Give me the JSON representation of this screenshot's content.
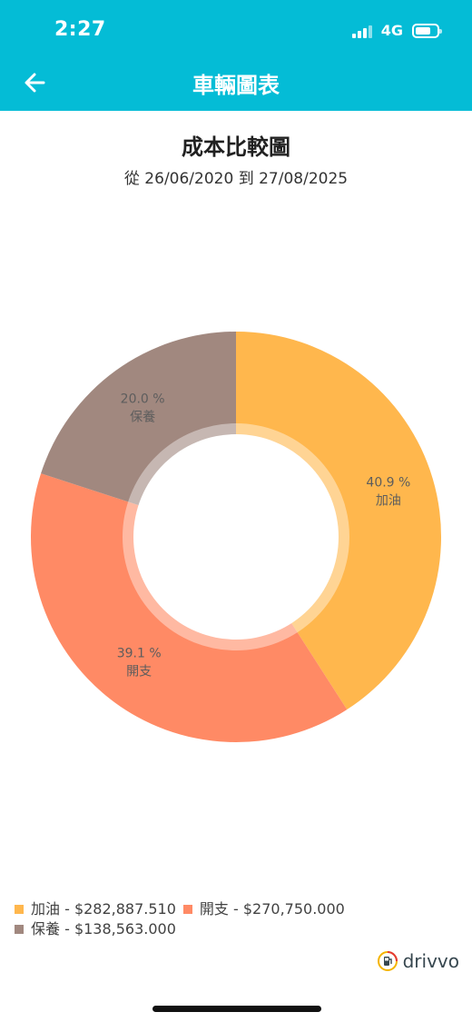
{
  "status_bar": {
    "time": "2:27",
    "network": "4G"
  },
  "header": {
    "title": "車輛圖表",
    "back_icon": "arrow-left-icon"
  },
  "chart_header": {
    "title": "成本比較圖",
    "subtitle": "從 26/06/2020 到 27/08/2025"
  },
  "chart_data": {
    "type": "pie",
    "title": "成本比較圖",
    "subtitle": "從 26/06/2020 到 27/08/2025",
    "series": [
      {
        "name": "加油",
        "percent": 40.9,
        "percent_label": "40.9 %",
        "value": 282887.51,
        "amount": "$282,887.510",
        "color": "#FFB74D"
      },
      {
        "name": "開支",
        "percent": 39.1,
        "percent_label": "39.1 %",
        "value": 270750.0,
        "amount": "$270,750.000",
        "color": "#FF8A65"
      },
      {
        "name": "保養",
        "percent": 20.0,
        "percent_label": "20.0 %",
        "value": 138563.0,
        "amount": "$138,563.000",
        "color": "#A1887F"
      }
    ],
    "legend_position": "bottom-left"
  },
  "legend": [
    {
      "text": "加油 - $282,887.510",
      "color": "#FFB74D"
    },
    {
      "text": "開支 - $270,750.000",
      "color": "#FF8A65"
    },
    {
      "text": "保養 - $138,563.000",
      "color": "#A1887F"
    }
  ],
  "brand": {
    "name": "drivvo",
    "icon": "fuel-pump-logo-icon"
  },
  "colors": {
    "header": "#04BCD6"
  }
}
